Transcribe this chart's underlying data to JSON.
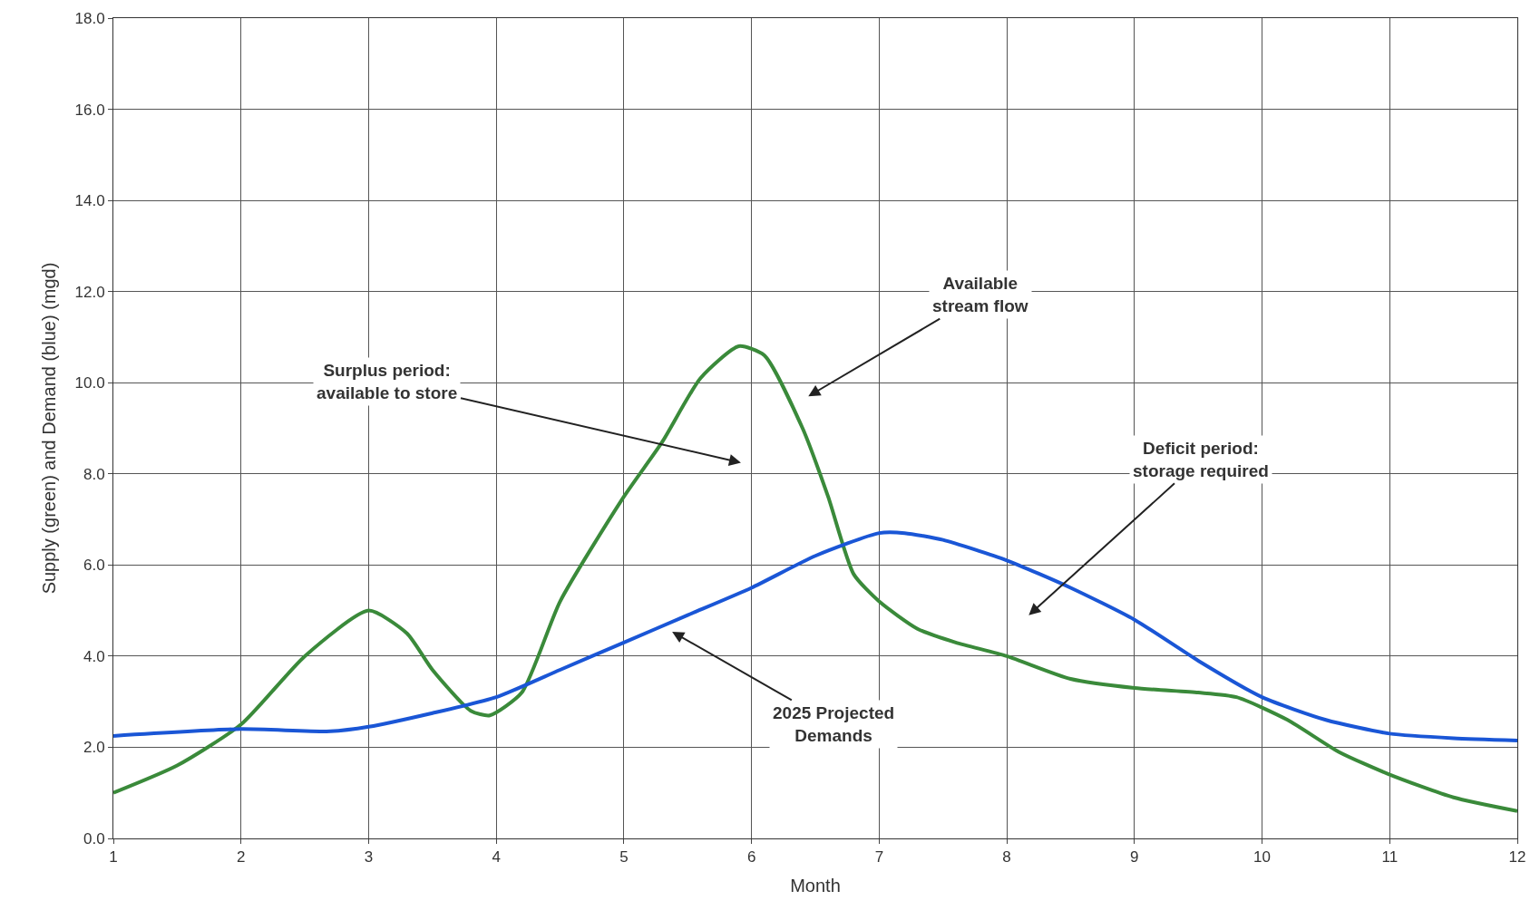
{
  "chart_data": {
    "type": "line",
    "xlabel": "Month",
    "ylabel": "Supply (green) and Demand (blue) (mgd)",
    "xlim": [
      1,
      12
    ],
    "xticks": [
      1,
      2,
      3,
      4,
      5,
      6,
      7,
      8,
      9,
      10,
      11,
      12
    ],
    "ylim": [
      0,
      18
    ],
    "yticks": [
      {
        "value": 0,
        "label": "0.0"
      },
      {
        "value": 2,
        "label": "2.0"
      },
      {
        "value": 4,
        "label": "4.0"
      },
      {
        "value": 6,
        "label": "6.0"
      },
      {
        "value": 8,
        "label": "8.0"
      },
      {
        "value": 10,
        "label": "10.0"
      },
      {
        "value": 12,
        "label": "12.0"
      },
      {
        "value": 14,
        "label": "14.0"
      },
      {
        "value": 16,
        "label": "16.0"
      },
      {
        "value": 18,
        "label": "18.0"
      }
    ],
    "grid": true,
    "marker": "none",
    "line_style": "solid",
    "series": [
      {
        "color": "#3a8a3a",
        "x": [
          1,
          1.5,
          2,
          2.5,
          3,
          3.3,
          3.5,
          3.8,
          3.95,
          4.2,
          4.5,
          5,
          5.3,
          5.6,
          5.9,
          6.1,
          6.4,
          6.6,
          6.8,
          7,
          7.3,
          7.6,
          8,
          8.5,
          9,
          9.5,
          9.8,
          10.2,
          10.6,
          11,
          11.5,
          12
        ],
        "values": [
          1.0,
          1.6,
          2.5,
          4.0,
          5.0,
          4.5,
          3.7,
          2.8,
          2.7,
          3.2,
          5.2,
          7.5,
          8.7,
          10.1,
          10.8,
          10.6,
          9.0,
          7.5,
          5.8,
          5.2,
          4.6,
          4.3,
          4.0,
          3.5,
          3.3,
          3.2,
          3.1,
          2.6,
          1.9,
          1.4,
          0.9,
          0.6
        ]
      },
      {
        "color": "#1a56d6",
        "x": [
          1,
          2,
          2.7,
          3,
          3.5,
          4,
          4.5,
          5,
          5.5,
          6,
          6.5,
          7,
          7.2,
          7.5,
          8,
          8.5,
          9,
          9.5,
          10,
          10.5,
          11,
          11.5,
          12
        ],
        "values": [
          2.25,
          2.4,
          2.35,
          2.45,
          2.75,
          3.1,
          3.7,
          4.3,
          4.9,
          5.5,
          6.2,
          6.7,
          6.7,
          6.55,
          6.1,
          5.5,
          4.8,
          3.9,
          3.1,
          2.6,
          2.3,
          2.2,
          2.15
        ]
      }
    ],
    "annotations": [
      "Available\nstream flow",
      "Surplus period:\navailable to store",
      "Deficit period:\nstorage required",
      "2025 Projected\nDemands"
    ]
  }
}
